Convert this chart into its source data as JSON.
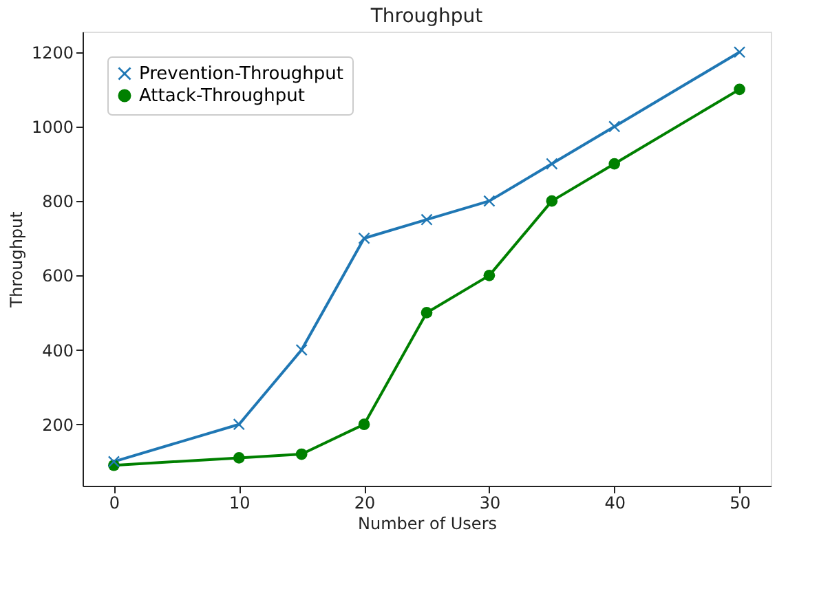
{
  "chart_data": {
    "type": "line",
    "title": "Throughput",
    "xlabel": "Number of Users",
    "ylabel": "Throughput",
    "x": [
      0,
      10,
      15,
      20,
      25,
      30,
      35,
      40,
      50
    ],
    "series": [
      {
        "name": "Prevention-Throughput",
        "color": "#1f77b4",
        "marker": "cross",
        "values": [
          100,
          200,
          400,
          700,
          750,
          800,
          900,
          1000,
          1200
        ]
      },
      {
        "name": "Attack-Throughput",
        "color": "#008000",
        "marker": "circle",
        "values": [
          90,
          110,
          120,
          200,
          500,
          600,
          800,
          900,
          1100
        ]
      }
    ],
    "xlim": [
      -2.5,
      52.5
    ],
    "xticks": [
      0,
      10,
      20,
      30,
      40,
      50
    ],
    "ylim": [
      35,
      1255
    ],
    "yticks": [
      200,
      400,
      600,
      800,
      1000,
      1200
    ],
    "grid": false,
    "legend": "top left",
    "line_style": "solid"
  }
}
